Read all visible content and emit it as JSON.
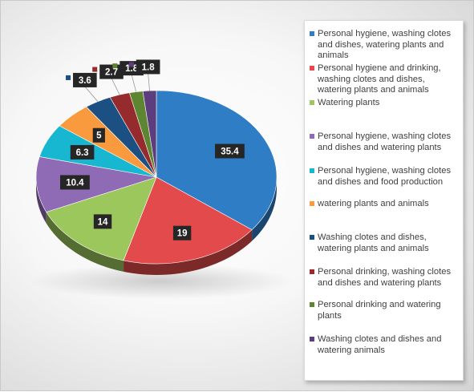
{
  "chart_data": {
    "type": "pie",
    "title": "",
    "legend_position": "right",
    "slices": [
      {
        "label": "Personal hygiene, washing clotes and dishes, watering plants and animals",
        "value": 35.4,
        "value_label": "35.4",
        "color": "#2F7EC5"
      },
      {
        "label": "Personal hygiene and drinking, washing clotes and dishes, watering plants and animals",
        "value": 19,
        "value_label": "19",
        "color": "#E24A4C"
      },
      {
        "label": "Watering plants",
        "value": 14,
        "value_label": "14",
        "color": "#9BC75C"
      },
      {
        "label": "Personal hygiene, washing clotes and dishes and watering plants",
        "value": 10.4,
        "value_label": "10.4",
        "color": "#8F6BB5"
      },
      {
        "label": "Personal hygiene, washing clotes and dishes and food production",
        "value": 6.3,
        "value_label": "6.3",
        "color": "#17B7D1"
      },
      {
        "label": "watering plants and animals",
        "value": 5,
        "value_label": "5",
        "color": "#F99A3E"
      },
      {
        "label": "Washing clotes and dishes, watering plants and animals",
        "value": 3.6,
        "value_label": "3.6",
        "color": "#1C4F82"
      },
      {
        "label": "Personal drinking, washing clotes and dishes and watering plants",
        "value": 2.7,
        "value_label": "2.7",
        "color": "#962B2D"
      },
      {
        "label": "Personal drinking and watering plants",
        "value": 1.8,
        "value_label": "1.8",
        "color": "#5E8532"
      },
      {
        "label": "Washing clotes and dishes and watering animals",
        "value": 1.8,
        "value_label": "1.8",
        "color": "#5C3D7E"
      }
    ]
  }
}
